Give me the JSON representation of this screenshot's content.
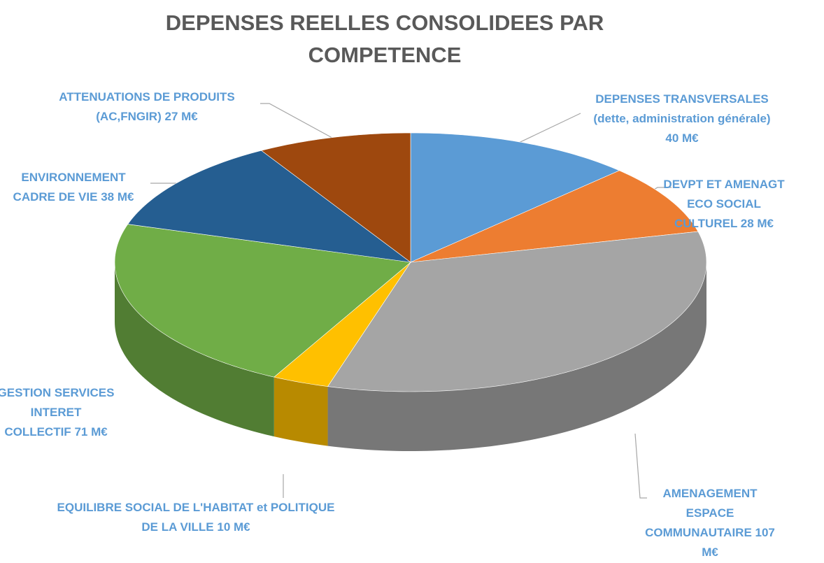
{
  "chart_data": {
    "type": "pie3d",
    "title": "DEPENSES REELLES CONSOLIDEES PAR COMPETENCE",
    "categories": [
      "DEPENSES TRANSVERSALES (dette, administration générale)",
      "DEVPT ET AMENAGT ECO SOCIAL CULTUREL",
      "AMENAGEMENT ESPACE COMMUNAUTAIRE",
      "EQUILIBRE SOCIAL DE L'HABITAT et POLITIQUE DE LA VILLE",
      "GESTION SERVICES INTERET COLLECTIF",
      "ENVIRONNEMENT CADRE DE VIE",
      "ATTENUATIONS DE PRODUITS (AC,FNGIR)"
    ],
    "values": [
      40,
      28,
      107,
      10,
      71,
      38,
      27
    ],
    "value_labels": [
      "40 M€",
      "28 M€",
      "107 M€",
      "10 M€",
      "71 M€",
      "38 M€",
      "27 M€"
    ],
    "colors": [
      "#5b9bd5",
      "#ed7d31",
      "#a5a5a5",
      "#ffc000",
      "#70ad47",
      "#255e91",
      "#9e480e"
    ]
  }
}
